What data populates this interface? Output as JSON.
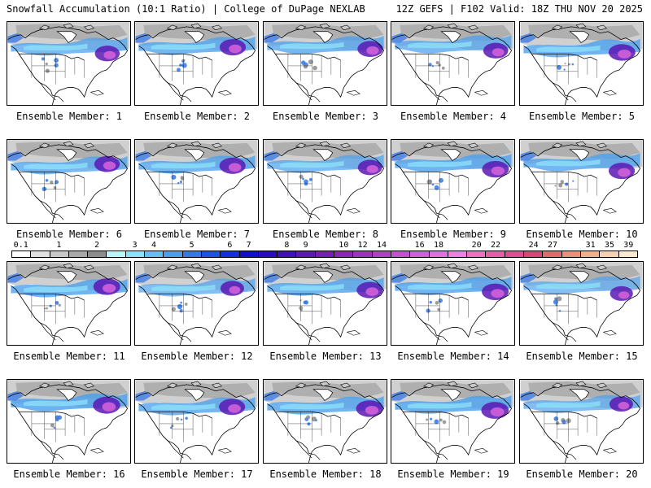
{
  "header": {
    "left": "Snowfall Accumulation (10:1 Ratio) | College of DuPage NEXLAB",
    "right": "12Z GEFS | F102 Valid: 18Z THU NOV 20 2025"
  },
  "members": [
    {
      "label": "Ensemble Member: 1",
      "intensity": 0.7
    },
    {
      "label": "Ensemble Member: 2",
      "intensity": 0.8
    },
    {
      "label": "Ensemble Member: 3",
      "intensity": 0.75
    },
    {
      "label": "Ensemble Member: 4",
      "intensity": 0.7
    },
    {
      "label": "Ensemble Member: 5",
      "intensity": 0.85
    },
    {
      "label": "Ensemble Member: 6",
      "intensity": 0.75
    },
    {
      "label": "Ensemble Member: 7",
      "intensity": 0.8
    },
    {
      "label": "Ensemble Member: 8",
      "intensity": 0.65
    },
    {
      "label": "Ensemble Member: 9",
      "intensity": 0.85
    },
    {
      "label": "Ensemble Member: 10",
      "intensity": 0.8
    },
    {
      "label": "Ensemble Member: 11",
      "intensity": 0.85
    },
    {
      "label": "Ensemble Member: 12",
      "intensity": 0.6
    },
    {
      "label": "Ensemble Member: 13",
      "intensity": 0.8
    },
    {
      "label": "Ensemble Member: 14",
      "intensity": 0.85
    },
    {
      "label": "Ensemble Member: 15",
      "intensity": 0.55
    },
    {
      "label": "Ensemble Member: 16",
      "intensity": 0.9
    },
    {
      "label": "Ensemble Member: 17",
      "intensity": 0.8
    },
    {
      "label": "Ensemble Member: 18",
      "intensity": 0.85
    },
    {
      "label": "Ensemble Member: 19",
      "intensity": 0.9
    },
    {
      "label": "Ensemble Member: 20",
      "intensity": 0.6
    }
  ],
  "colorbar": {
    "labels": [
      "0.1",
      "1",
      "2",
      "3",
      "4",
      "5",
      "6",
      "7",
      "8",
      "9",
      "10",
      "12",
      "14",
      "16",
      "18",
      "20",
      "22",
      "24",
      "27",
      "31",
      "35",
      "39"
    ],
    "colors": [
      "#ffffff",
      "#e0e0e0",
      "#c8c8c8",
      "#a8a8a8",
      "#8c8c8c",
      "#b8f4f8",
      "#8ce0f8",
      "#64c0f4",
      "#4aa0ee",
      "#3478e8",
      "#2050e4",
      "#1430d8",
      "#1010c8",
      "#2a0cc0",
      "#4010b8",
      "#5a18b4",
      "#7020b4",
      "#8828b8",
      "#9c34c0",
      "#b040c8",
      "#c450d0",
      "#d060d8",
      "#e070dc",
      "#f080e0",
      "#f070c0",
      "#e85ca8",
      "#e04c90",
      "#d84478",
      "#e06a6a",
      "#e8907c",
      "#f0b090",
      "#f8d0b0",
      "#fce8d0"
    ]
  }
}
